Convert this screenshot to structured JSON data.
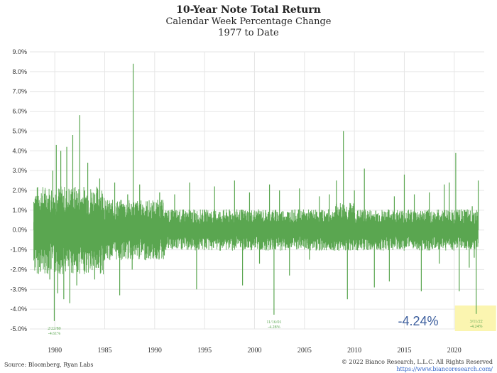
{
  "chart_data": {
    "type": "line",
    "title": "10-Year Note Total Return",
    "subtitle": "Calendar Week Percentage Change",
    "subtitle2": "1977 to Date",
    "xlim": [
      1977.5,
      2023.0
    ],
    "ylim": [
      -5.0,
      9.0
    ],
    "y_ticks": [
      -5,
      -4,
      -3,
      -2,
      -1,
      0,
      1,
      2,
      3,
      4,
      5,
      6,
      7,
      8,
      9
    ],
    "y_tick_labels": [
      "-5.0%",
      "-4.0%",
      "-3.0%",
      "-2.0%",
      "-1.0%",
      "0.0%",
      "1.0%",
      "2.0%",
      "3.0%",
      "4.0%",
      "5.0%",
      "6.0%",
      "7.0%",
      "8.0%",
      "9.0%"
    ],
    "x_ticks": [
      1980,
      1985,
      1990,
      1995,
      2000,
      2005,
      2010,
      2015,
      2020
    ],
    "x_tick_labels": [
      "1980",
      "1985",
      "1990",
      "1995",
      "2000",
      "2005",
      "2010",
      "2015",
      "2020"
    ],
    "grid": true,
    "series": [
      {
        "color": "#5aa650",
        "x": [
          1977.9,
          1978.5,
          1979.0,
          1979.5,
          1979.8,
          1979.95,
          1980.15,
          1980.3,
          1980.6,
          1980.9,
          1981.2,
          1981.5,
          1981.8,
          1982.2,
          1982.5,
          1982.8,
          1983.3,
          1984.0,
          1984.5,
          1985.0,
          1986.0,
          1986.5,
          1987.3,
          1987.75,
          1987.85,
          1988.5,
          1989.5,
          1990.5,
          1992.0,
          1993.5,
          1994.2,
          1996.0,
          1998.0,
          1998.8,
          1999.5,
          2000.5,
          2001.5,
          2001.95,
          2002.5,
          2003.5,
          2004.5,
          2005.5,
          2006.5,
          2007.5,
          2008.2,
          2008.9,
          2009.3,
          2010.0,
          2011.0,
          2012.0,
          2013.5,
          2014.0,
          2015.0,
          2016.0,
          2016.7,
          2017.5,
          2018.5,
          2019.0,
          2019.5,
          2020.15,
          2020.5,
          2021.0,
          2021.5,
          2021.8,
          2022.0,
          2022.2,
          2022.4
        ],
        "y": [
          0.4,
          -0.5,
          1.5,
          -2.5,
          3.0,
          -4.6,
          4.3,
          -3.2,
          4.0,
          -3.5,
          4.2,
          -3.7,
          4.8,
          -2.8,
          5.8,
          -1.5,
          3.4,
          -2.5,
          2.6,
          -1.5,
          2.4,
          -3.3,
          1.8,
          -2.0,
          8.4,
          2.3,
          -1.3,
          1.9,
          1.8,
          2.4,
          -3.0,
          2.2,
          2.5,
          -2.8,
          1.9,
          -1.7,
          2.3,
          -4.28,
          2.0,
          -2.3,
          2.1,
          -1.5,
          1.7,
          1.8,
          2.5,
          5.0,
          -3.5,
          2.0,
          3.1,
          -2.9,
          -2.6,
          1.7,
          2.8,
          1.8,
          -3.1,
          1.9,
          -1.7,
          2.3,
          2.4,
          3.9,
          -3.1,
          1.0,
          -1.9,
          1.2,
          -1.4,
          -4.24,
          2.5
        ]
      }
    ],
    "annotations": [
      {
        "date": "2/22/80",
        "value": "-4.61%",
        "x": 1979.95,
        "y": -4.61
      },
      {
        "date": "11/16/01",
        "value": "-4.28%",
        "x": 2001.95,
        "y": -4.28
      },
      {
        "date": "3/11/22",
        "value": "-4.24%",
        "x": 2022.2,
        "y": -4.24
      }
    ],
    "callout": "-4.24%"
  },
  "footer": {
    "source": "Source: Bloomberg, Ryan Labs",
    "copyright": "© 2022 Bianco Research, L.L.C. All Rights Reserved",
    "url": "https://www.biancoresearch.com/"
  },
  "colors": {
    "series": "#5aa650",
    "grid": "#e6e6e6",
    "callout": "#3d5f9e",
    "highlight": "#fbf5b0"
  }
}
